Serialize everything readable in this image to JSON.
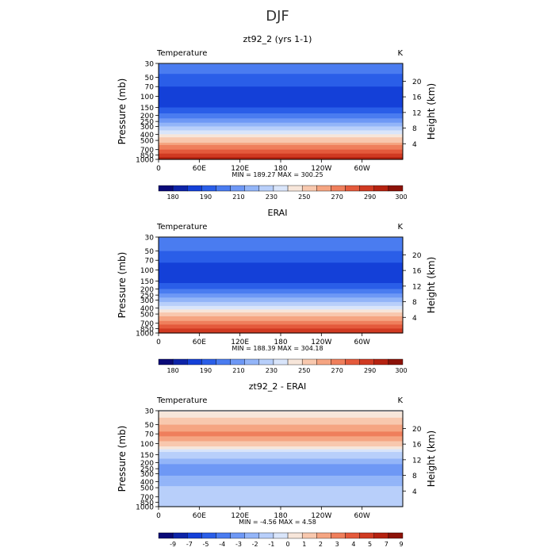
{
  "figure": {
    "title": "DJF",
    "left_axis_label": "Pressure (mb)",
    "right_axis_label": "Height (km)",
    "variable_label": "Temperature",
    "units": "K",
    "pressure_ticks": [
      "30",
      "50",
      "70",
      "100",
      "150",
      "200",
      "250",
      "300",
      "400",
      "500",
      "700",
      "850",
      "1000"
    ],
    "height_ticks": [
      "4",
      "8",
      "12",
      "16",
      "20"
    ],
    "lon_ticks": [
      "0",
      "60E",
      "120E",
      "180",
      "120W",
      "60W"
    ]
  },
  "chart_data": [
    {
      "type": "heatmap",
      "title": "zt92_2 (yrs 1-1)",
      "stats": "MIN = 189.27   MAX = 300.25",
      "min": 189.27,
      "max": 300.25,
      "colorbar_labels": [
        "180",
        "190",
        "210",
        "230",
        "250",
        "270",
        "290",
        "300"
      ],
      "colors": [
        "#0a0a78",
        "#0d24a8",
        "#1440d8",
        "#2a5ee8",
        "#4a7cf0",
        "#6e98f5",
        "#93b5f8",
        "#b8cffa",
        "#d9e5fa",
        "#f7e6da",
        "#f8c8ae",
        "#f5a582",
        "#ef7f5c",
        "#e45a3c",
        "#d03a22",
        "#b52210",
        "#8c1208"
      ],
      "values_by_level": [
        {
          "p": 30,
          "T": 222
        },
        {
          "p": 50,
          "T": 214
        },
        {
          "p": 70,
          "T": 209
        },
        {
          "p": 100,
          "T": 206
        },
        {
          "p": 150,
          "T": 208
        },
        {
          "p": 200,
          "T": 217
        },
        {
          "p": 250,
          "T": 226
        },
        {
          "p": 300,
          "T": 234
        },
        {
          "p": 400,
          "T": 248
        },
        {
          "p": 500,
          "T": 259
        },
        {
          "p": 700,
          "T": 275
        },
        {
          "p": 850,
          "T": 283
        },
        {
          "p": 1000,
          "T": 290
        }
      ]
    },
    {
      "type": "heatmap",
      "title": "ERAI",
      "stats": "MIN = 188.39   MAX = 304.18",
      "min": 188.39,
      "max": 304.18,
      "colorbar_labels": [
        "180",
        "190",
        "210",
        "230",
        "250",
        "270",
        "290",
        "300"
      ],
      "colors": [
        "#0a0a78",
        "#0d24a8",
        "#1440d8",
        "#2a5ee8",
        "#4a7cf0",
        "#6e98f5",
        "#93b5f8",
        "#b8cffa",
        "#d9e5fa",
        "#f7e6da",
        "#f8c8ae",
        "#f5a582",
        "#ef7f5c",
        "#e45a3c",
        "#d03a22",
        "#b52210",
        "#8c1208"
      ],
      "values_by_level": [
        {
          "p": 30,
          "T": 223
        },
        {
          "p": 50,
          "T": 215
        },
        {
          "p": 70,
          "T": 210
        },
        {
          "p": 100,
          "T": 205
        },
        {
          "p": 150,
          "T": 207
        },
        {
          "p": 200,
          "T": 216
        },
        {
          "p": 250,
          "T": 225
        },
        {
          "p": 300,
          "T": 233
        },
        {
          "p": 400,
          "T": 247
        },
        {
          "p": 500,
          "T": 258
        },
        {
          "p": 700,
          "T": 274
        },
        {
          "p": 850,
          "T": 283
        },
        {
          "p": 1000,
          "T": 291
        }
      ]
    },
    {
      "type": "heatmap",
      "title": "zt92_2 - ERAI",
      "stats": "MIN = -4.56   MAX = 4.58",
      "min": -4.56,
      "max": 4.58,
      "colorbar_labels": [
        "-9",
        "-7",
        "-5",
        "-4",
        "-3",
        "-2",
        "-1",
        "0",
        "1",
        "2",
        "3",
        "4",
        "5",
        "7",
        "9"
      ],
      "colors": [
        "#0a0a78",
        "#0d24a8",
        "#1440d8",
        "#2a5ee8",
        "#4a7cf0",
        "#6e98f5",
        "#93b5f8",
        "#b8cffa",
        "#d9e5fa",
        "#f7e6da",
        "#f8c8ae",
        "#f5a582",
        "#ef7f5c",
        "#e45a3c",
        "#d03a22",
        "#b52210",
        "#8c1208"
      ],
      "values_by_level": [
        {
          "p": 30,
          "T": 0.5
        },
        {
          "p": 50,
          "T": 2.5
        },
        {
          "p": 70,
          "T": 4.0
        },
        {
          "p": 100,
          "T": 2.0
        },
        {
          "p": 150,
          "T": -1.0
        },
        {
          "p": 200,
          "T": -2.5
        },
        {
          "p": 250,
          "T": -3.0
        },
        {
          "p": 300,
          "T": -3.0
        },
        {
          "p": 400,
          "T": -2.0
        },
        {
          "p": 500,
          "T": -1.5
        },
        {
          "p": 700,
          "T": -0.8
        },
        {
          "p": 850,
          "T": -0.5
        },
        {
          "p": 1000,
          "T": -0.8
        }
      ]
    }
  ]
}
